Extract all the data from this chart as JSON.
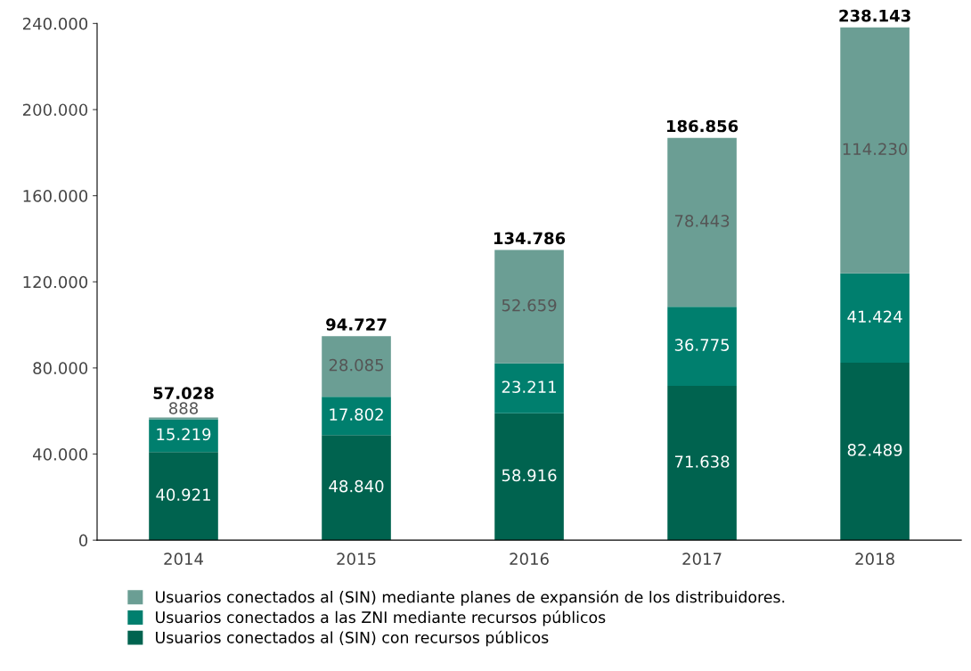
{
  "chart_data": {
    "type": "bar",
    "stacked": true,
    "categories": [
      "2014",
      "2015",
      "2016",
      "2017",
      "2018"
    ],
    "series": [
      {
        "name": "Usuarios conectados al (SIN) con recursos públicos",
        "color": "#00634f",
        "values": [
          40921,
          48840,
          58916,
          71638,
          82489
        ],
        "value_labels": [
          "40.921",
          "48.840",
          "58.916",
          "71.638",
          "82.489"
        ]
      },
      {
        "name": "Usuarios conectados a las ZNI mediante recursos públicos",
        "color": "#007f6e",
        "values": [
          15219,
          17802,
          23211,
          36775,
          41424
        ],
        "value_labels": [
          "15.219",
          "17.802",
          "23.211",
          "36.775",
          "41.424"
        ]
      },
      {
        "name": "Usuarios conectados al (SIN) mediante planes de expansión de los distribuidores.",
        "color": "#6b9e94",
        "values": [
          888,
          28085,
          52659,
          78443,
          114230
        ],
        "value_labels": [
          "888",
          "28.085",
          "52.659",
          "78.443",
          "114.230"
        ]
      }
    ],
    "totals": [
      "57.028",
      "94.727",
      "134.786",
      "186.856",
      "238.143"
    ],
    "ylim": [
      0,
      240000
    ],
    "yticks": [
      {
        "value": 0,
        "label": "0"
      },
      {
        "value": 40000,
        "label": "40.000"
      },
      {
        "value": 80000,
        "label": "80.000"
      },
      {
        "value": 120000,
        "label": "120.000"
      },
      {
        "value": 160000,
        "label": "160.000"
      },
      {
        "value": 200000,
        "label": "200.000"
      },
      {
        "value": 240000,
        "label": "240.000"
      }
    ],
    "grid": false,
    "legend": "bottom"
  }
}
